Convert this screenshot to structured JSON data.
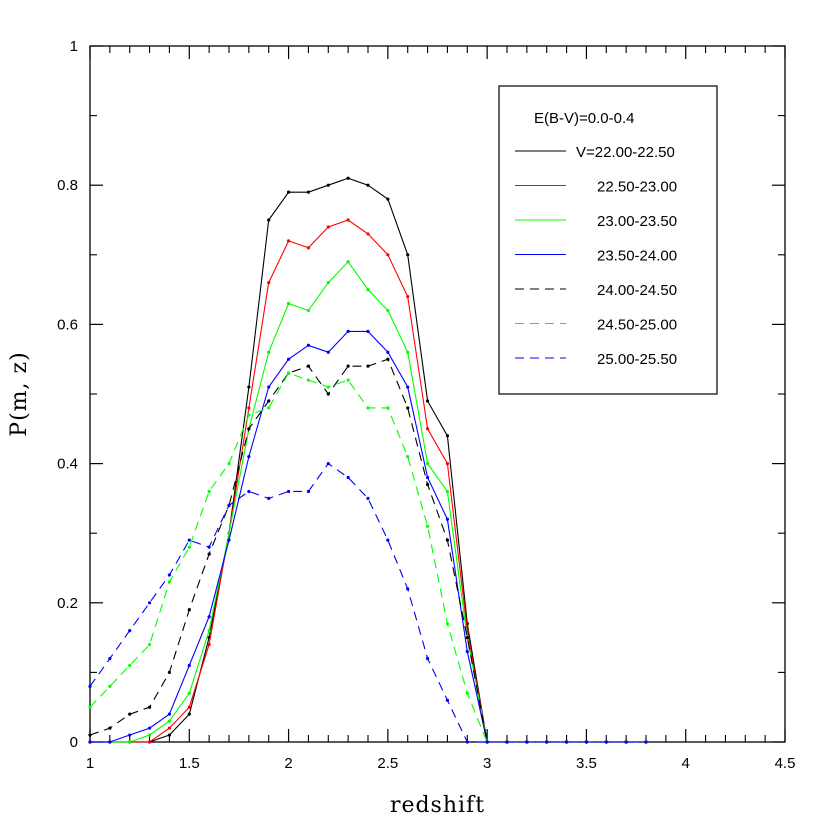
{
  "chart_data": {
    "type": "line",
    "title": "",
    "xlabel": "redshift",
    "ylabel": "P(m, z)",
    "xlim": [
      1,
      4.5
    ],
    "ylim": [
      0,
      1
    ],
    "x_ticks": [
      1,
      1.5,
      2,
      2.5,
      3,
      3.5,
      4,
      4.5
    ],
    "x_tick_labels": [
      "1",
      "1.5",
      "2",
      "2.5",
      "3",
      "3.5",
      "4",
      "4.5"
    ],
    "y_ticks": [
      0,
      0.2,
      0.4,
      0.6,
      0.8,
      1
    ],
    "y_tick_labels": [
      "0",
      "0.2",
      "0.4",
      "0.6",
      "0.8",
      "1"
    ],
    "grid": false,
    "legend_placement": "top-right",
    "legend_title": "E(B-V)=0.0-0.4",
    "x": [
      1.0,
      1.1,
      1.2,
      1.3,
      1.4,
      1.5,
      1.6,
      1.7,
      1.8,
      1.9,
      2.0,
      2.1,
      2.2,
      2.3,
      2.4,
      2.5,
      2.6,
      2.7,
      2.8,
      2.9,
      3.0,
      3.1,
      3.2,
      3.3,
      3.4,
      3.5,
      3.6,
      3.7,
      3.8
    ],
    "series": [
      {
        "name": "V=22.00-22.50",
        "color": "#000000",
        "dash": false,
        "values": [
          0.0,
          0.0,
          0.0,
          0.0,
          0.01,
          0.04,
          0.15,
          0.3,
          0.51,
          0.75,
          0.79,
          0.79,
          0.8,
          0.81,
          0.8,
          0.78,
          0.7,
          0.49,
          0.44,
          0.17,
          0.0,
          0.0,
          0.0,
          0.0,
          0.0,
          0.0,
          0.0,
          0.0,
          0.0
        ]
      },
      {
        "name": "22.50-23.00",
        "color": "#ff0000",
        "dash": false,
        "values": [
          0.0,
          0.0,
          0.0,
          0.0,
          0.02,
          0.05,
          0.14,
          0.3,
          0.48,
          0.66,
          0.72,
          0.71,
          0.74,
          0.75,
          0.73,
          0.7,
          0.64,
          0.45,
          0.4,
          0.16,
          0.0,
          0.0,
          0.0,
          0.0,
          0.0,
          0.0,
          0.0,
          0.0,
          0.0
        ]
      },
      {
        "name": "23.00-23.50",
        "color": "#00ff00",
        "dash": false,
        "values": [
          0.0,
          0.0,
          0.0,
          0.01,
          0.03,
          0.07,
          0.16,
          0.3,
          0.45,
          0.56,
          0.63,
          0.62,
          0.66,
          0.69,
          0.65,
          0.62,
          0.56,
          0.4,
          0.36,
          0.15,
          0.0,
          0.0,
          0.0,
          0.0,
          0.0,
          0.0,
          0.0,
          0.0,
          0.0
        ]
      },
      {
        "name": "23.50-24.00",
        "color": "#0000ff",
        "dash": false,
        "values": [
          0.0,
          0.0,
          0.01,
          0.02,
          0.04,
          0.11,
          0.18,
          0.29,
          0.41,
          0.51,
          0.55,
          0.57,
          0.56,
          0.59,
          0.59,
          0.56,
          0.51,
          0.38,
          0.32,
          0.13,
          0.0,
          0.0,
          0.0,
          0.0,
          0.0,
          0.0,
          0.0,
          0.0,
          0.0
        ]
      },
      {
        "name": "24.00-24.50",
        "color": "#000000",
        "dash": true,
        "values": [
          0.01,
          0.02,
          0.04,
          0.05,
          0.1,
          0.19,
          0.27,
          0.34,
          0.45,
          0.49,
          0.53,
          0.54,
          0.5,
          0.54,
          0.54,
          0.55,
          0.48,
          0.37,
          0.29,
          0.15,
          0.0,
          0.0,
          0.0,
          0.0,
          0.0,
          0.0,
          0.0,
          0.0,
          0.0
        ]
      },
      {
        "name": "24.50-25.00",
        "color": "#00ff00",
        "dash": true,
        "values": [
          0.05,
          0.08,
          0.11,
          0.14,
          0.23,
          0.28,
          0.36,
          0.4,
          0.47,
          0.48,
          0.53,
          0.52,
          0.51,
          0.52,
          0.48,
          0.48,
          0.41,
          0.31,
          0.17,
          0.07,
          0.0,
          0.0,
          0.0,
          0.0,
          0.0,
          0.0,
          0.0,
          0.0,
          0.0
        ]
      },
      {
        "name": "25.00-25.50",
        "color": "#0000ff",
        "dash": true,
        "values": [
          0.08,
          0.12,
          0.16,
          0.2,
          0.24,
          0.29,
          0.28,
          0.34,
          0.36,
          0.35,
          0.36,
          0.36,
          0.4,
          0.38,
          0.35,
          0.29,
          0.22,
          0.12,
          0.06,
          0.0,
          0.0,
          0.0,
          0.0,
          0.0,
          0.0,
          0.0,
          0.0,
          0.0,
          0.0
        ]
      }
    ]
  }
}
